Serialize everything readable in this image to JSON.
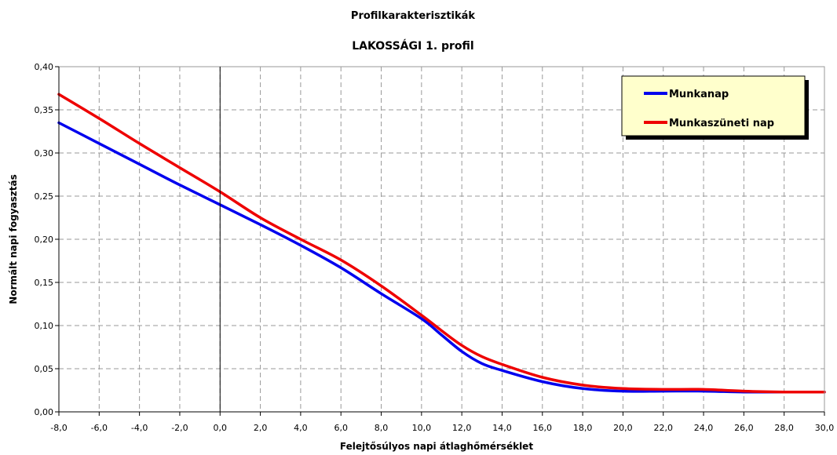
{
  "chart_data": {
    "type": "line",
    "title": "Profilkarakterisztikák",
    "subtitle": "LAKOSSÁGI 1. profil",
    "xlabel": "Felejtősúlyos napi átlaghőmérséklet",
    "ylabel": "Normált napi fogyasztás",
    "xlim": [
      -8,
      30
    ],
    "ylim": [
      0,
      0.4
    ],
    "x_ticks": [
      -8,
      -6,
      -4,
      -2,
      0,
      2,
      4,
      6,
      8,
      10,
      12,
      14,
      16,
      18,
      20,
      22,
      24,
      26,
      28,
      30
    ],
    "x_tick_labels": [
      "-8,0",
      "-6,0",
      "-4,0",
      "-2,0",
      "0,0",
      "2,0",
      "4,0",
      "6,0",
      "8,0",
      "10,0",
      "12,0",
      "14,0",
      "16,0",
      "18,0",
      "20,0",
      "22,0",
      "24,0",
      "26,0",
      "28,0",
      "30,0"
    ],
    "y_ticks": [
      0,
      0.05,
      0.1,
      0.15,
      0.2,
      0.25,
      0.3,
      0.35,
      0.4
    ],
    "y_tick_labels": [
      "0,00",
      "0,05",
      "0,10",
      "0,15",
      "0,20",
      "0,25",
      "0,30",
      "0,35",
      "0,40"
    ],
    "grid": true,
    "legend_position": "top-right",
    "x": [
      -8,
      -6,
      -4,
      -2,
      0,
      2,
      4,
      6,
      8,
      10,
      11,
      12,
      13,
      14,
      16,
      18,
      20,
      22,
      24,
      26,
      28,
      30
    ],
    "series": [
      {
        "name": "Munkanap",
        "color": "#0000ee",
        "values": [
          0.335,
          0.311,
          0.287,
          0.263,
          0.24,
          0.217,
          0.193,
          0.167,
          0.137,
          0.108,
          0.089,
          0.07,
          0.056,
          0.048,
          0.035,
          0.027,
          0.024,
          0.024,
          0.024,
          0.023,
          0.023,
          0.023
        ]
      },
      {
        "name": "Munkaszüneti nap",
        "color": "#ee0000",
        "values": [
          0.368,
          0.34,
          0.311,
          0.283,
          0.255,
          0.225,
          0.2,
          0.176,
          0.146,
          0.112,
          0.094,
          0.077,
          0.064,
          0.055,
          0.04,
          0.031,
          0.027,
          0.026,
          0.026,
          0.024,
          0.023,
          0.023
        ]
      }
    ],
    "reference_line_x": 0,
    "colors": {
      "legend_background": "#ffffcc",
      "legend_border": "#000000",
      "legend_shadow": "#000000",
      "grid": "#999999",
      "axis": "#000000"
    }
  }
}
